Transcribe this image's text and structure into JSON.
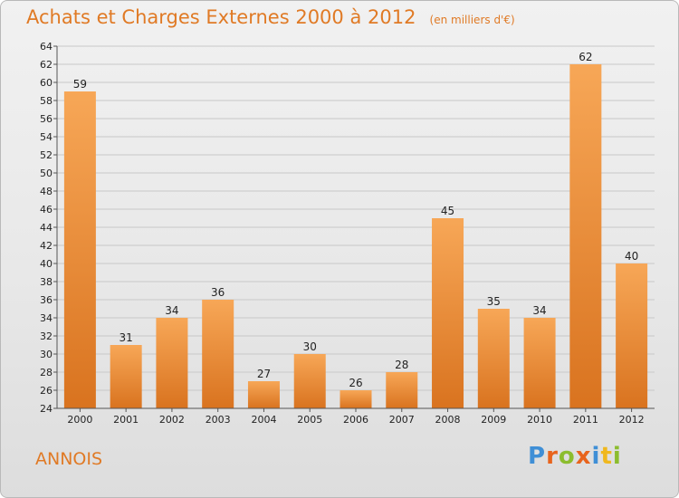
{
  "chart_data": {
    "type": "bar",
    "title": "Achats et Charges Externes 2000 à 2012",
    "unit": "(en milliers d'€)",
    "categories": [
      "2000",
      "2001",
      "2002",
      "2003",
      "2004",
      "2005",
      "2006",
      "2007",
      "2008",
      "2009",
      "2010",
      "2011",
      "2012"
    ],
    "values": [
      59,
      31,
      34,
      36,
      27,
      30,
      26,
      28,
      45,
      35,
      34,
      62,
      40
    ],
    "ylim": [
      24,
      64
    ],
    "yticks": [
      24,
      26,
      28,
      30,
      32,
      34,
      36,
      38,
      40,
      42,
      44,
      46,
      48,
      50,
      52,
      54,
      56,
      58,
      60,
      62,
      64
    ],
    "grid": true,
    "legend": "none",
    "bar_color_top": "#f7a757",
    "bar_color_bottom": "#d9731f"
  },
  "commune": "ANNOIS",
  "brand": {
    "text": "Proxiti",
    "letters": [
      {
        "ch": "P",
        "color": "#3f8fd6"
      },
      {
        "ch": "r",
        "color": "#e8641d"
      },
      {
        "ch": "o",
        "color": "#8cbd2e"
      },
      {
        "ch": "x",
        "color": "#e8641d"
      },
      {
        "ch": "i",
        "color": "#3f8fd6"
      },
      {
        "ch": "t",
        "color": "#f0b81e"
      },
      {
        "ch": "i",
        "color": "#8cbd2e"
      }
    ]
  },
  "colors": {
    "title": "#e07a25",
    "axis": "#555555",
    "grid": "#c8c8c8"
  }
}
